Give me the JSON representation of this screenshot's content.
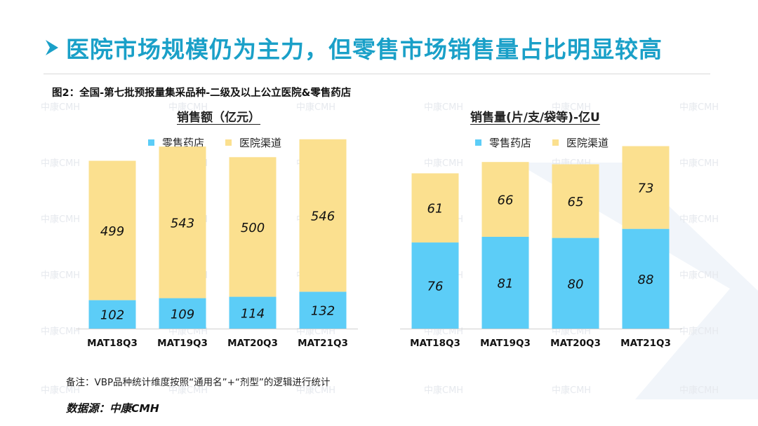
{
  "header": {
    "title": "医院市场规模仍为主力，但零售市场销售量占比明显较高"
  },
  "figure": {
    "caption": "图2：全国-第七批预报量集采品种-二级及以上公立医院&零售药店"
  },
  "watermark": {
    "text": "中康CMH"
  },
  "colors": {
    "title": "#1aa0c8",
    "retail": "#5ccdf7",
    "hospital": "#fbe08f"
  },
  "legend": {
    "retail": "零售药店",
    "hospital": "医院渠道"
  },
  "chart_data": [
    {
      "type": "bar",
      "stacked": true,
      "title": "销售额（亿元）",
      "categories": [
        "MAT18Q3",
        "MAT19Q3",
        "MAT20Q3",
        "MAT21Q3"
      ],
      "series": [
        {
          "name": "零售药店",
          "values": [
            102,
            109,
            114,
            132
          ]
        },
        {
          "name": "医院渠道",
          "values": [
            499,
            543,
            500,
            546
          ]
        }
      ],
      "ylim": [
        0,
        690
      ],
      "grid": false,
      "legend_position": "top"
    },
    {
      "type": "bar",
      "stacked": true,
      "title": "销售量(片/支/袋等)-亿U",
      "categories": [
        "MAT18Q3",
        "MAT19Q3",
        "MAT20Q3",
        "MAT21Q3"
      ],
      "series": [
        {
          "name": "零售药店",
          "values": [
            76,
            81,
            80,
            88
          ]
        },
        {
          "name": "医院渠道",
          "values": [
            61,
            66,
            65,
            73
          ]
        }
      ],
      "ylim": [
        0,
        170
      ],
      "grid": false,
      "legend_position": "top"
    }
  ],
  "footer": {
    "note": "备注：VBP品种统计维度按照“通用名”+“剂型”的逻辑进行统计",
    "source": "数据源：中康CMH"
  }
}
